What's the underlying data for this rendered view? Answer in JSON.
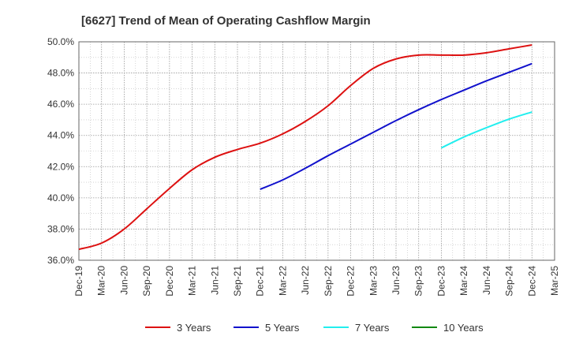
{
  "chart_data": {
    "type": "line",
    "title": "[6627]  Trend of Mean of Operating Cashflow Margin",
    "xlabel": "",
    "ylabel": "",
    "x_ticks": [
      "Dec-19",
      "Mar-20",
      "Jun-20",
      "Sep-20",
      "Dec-20",
      "Mar-21",
      "Jun-21",
      "Sep-21",
      "Dec-21",
      "Mar-22",
      "Jun-22",
      "Sep-22",
      "Dec-22",
      "Mar-23",
      "Jun-23",
      "Sep-23",
      "Dec-23",
      "Mar-24",
      "Jun-24",
      "Sep-24",
      "Dec-24",
      "Mar-25"
    ],
    "y_ticks": [
      "36.0%",
      "38.0%",
      "40.0%",
      "42.0%",
      "44.0%",
      "46.0%",
      "48.0%",
      "50.0%"
    ],
    "ylim": [
      36.0,
      50.0
    ],
    "grid": true,
    "legend_position": "bottom",
    "series": [
      {
        "name": "3 Years",
        "color": "#dd1111",
        "x": [
          "Dec-19",
          "Mar-20",
          "Jun-20",
          "Sep-20",
          "Dec-20",
          "Mar-21",
          "Jun-21",
          "Sep-21",
          "Dec-21",
          "Mar-22",
          "Jun-22",
          "Sep-22",
          "Dec-22",
          "Mar-23",
          "Jun-23",
          "Sep-23",
          "Dec-23",
          "Mar-24",
          "Jun-24",
          "Sep-24",
          "Dec-24"
        ],
        "values": [
          36.7,
          37.1,
          38.0,
          39.3,
          40.6,
          41.8,
          42.6,
          43.1,
          43.5,
          44.1,
          44.9,
          45.9,
          47.2,
          48.3,
          48.9,
          49.15,
          49.15,
          49.15,
          49.3,
          49.55,
          49.8
        ]
      },
      {
        "name": "5 Years",
        "color": "#1111cc",
        "x": [
          "Dec-21",
          "Mar-22",
          "Jun-22",
          "Sep-22",
          "Dec-22",
          "Mar-23",
          "Jun-23",
          "Sep-23",
          "Dec-23",
          "Mar-24",
          "Jun-24",
          "Sep-24",
          "Dec-24"
        ],
        "values": [
          40.55,
          41.15,
          41.9,
          42.7,
          43.45,
          44.2,
          44.95,
          45.65,
          46.3,
          46.9,
          47.5,
          48.05,
          48.6
        ]
      },
      {
        "name": "7 Years",
        "color": "#22eeee",
        "x": [
          "Dec-23",
          "Mar-24",
          "Jun-24",
          "Sep-24",
          "Dec-24"
        ],
        "values": [
          43.2,
          43.9,
          44.5,
          45.05,
          45.5
        ]
      },
      {
        "name": "10 Years",
        "color": "#118811",
        "x": [],
        "values": []
      }
    ]
  }
}
